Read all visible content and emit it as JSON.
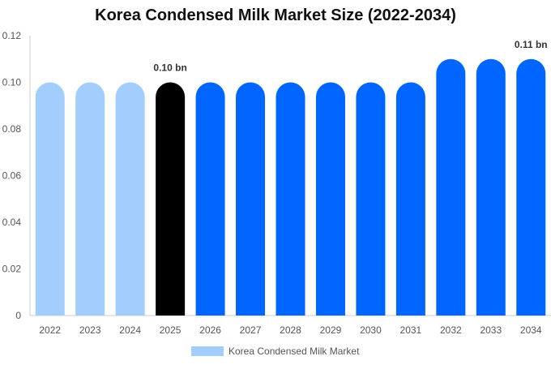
{
  "chart_data": {
    "type": "bar",
    "title": "Korea Condensed Milk Market Size (2022-2034)",
    "xlabel": "",
    "ylabel": "",
    "categories": [
      "2022",
      "2023",
      "2024",
      "2025",
      "2026",
      "2027",
      "2028",
      "2029",
      "2030",
      "2031",
      "2032",
      "2033",
      "2034"
    ],
    "series": [
      {
        "name": "Korea Condensed Milk Market",
        "values": [
          0.1,
          0.1,
          0.1,
          0.1,
          0.1,
          0.1,
          0.1,
          0.1,
          0.1,
          0.1,
          0.11,
          0.11,
          0.11
        ]
      }
    ],
    "ylim": [
      0,
      0.12
    ],
    "y_ticks": [
      "0",
      "0.02",
      "0.04",
      "0.06",
      "0.08",
      "0.10",
      "0.12"
    ],
    "data_labels": [
      {
        "category": "2025",
        "text": "0.10 bn"
      },
      {
        "category": "2034",
        "text": "0.11 bn"
      }
    ],
    "bar_colors": {
      "historical": "#a3cdfc",
      "current": "#000000",
      "forecast": "#0066ff"
    },
    "highlight_category": "2025",
    "grid": false,
    "legend": {
      "position": "bottom",
      "color": "#a3cdfc"
    }
  }
}
